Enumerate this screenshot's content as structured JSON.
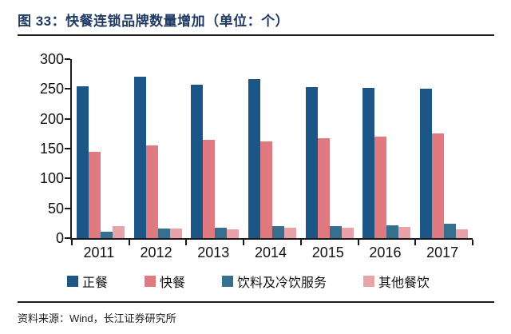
{
  "header": {
    "title": "图 33：快餐连锁品牌数量增加（单位：个）"
  },
  "footer": {
    "source": "资料来源：Wind，长江证券研究所"
  },
  "colors": {
    "title_text": "#203A64",
    "rule": "#1c1c1c",
    "axis": "#1a1a1a",
    "series_zhengcan": "#1C5687",
    "series_kuaican": "#DF7A80",
    "series_yinliao": "#36708E",
    "series_qita": "#E8A2A8"
  },
  "chart_data": {
    "type": "bar",
    "title": "快餐连锁品牌数量增加（单位：个）",
    "categories": [
      "2011",
      "2012",
      "2013",
      "2014",
      "2015",
      "2016",
      "2017"
    ],
    "series": [
      {
        "name": "正餐",
        "color": "#1C5687",
        "values": [
          254,
          270,
          257,
          267,
          253,
          252,
          250
        ]
      },
      {
        "name": "快餐",
        "color": "#DF7A80",
        "values": [
          145,
          156,
          165,
          162,
          167,
          170,
          175
        ]
      },
      {
        "name": "饮料及冷饮服务",
        "color": "#36708E",
        "values": [
          11,
          16,
          17,
          20,
          20,
          22,
          24
        ]
      },
      {
        "name": "其他餐饮",
        "color": "#E8A2A8",
        "values": [
          20,
          16,
          15,
          17,
          17,
          19,
          15
        ]
      }
    ],
    "xlabel": "",
    "ylabel": "",
    "ylim": [
      0,
      300
    ],
    "yticks": [
      0,
      50,
      100,
      150,
      200,
      250,
      300
    ],
    "grid": false,
    "legend_position": "bottom"
  }
}
